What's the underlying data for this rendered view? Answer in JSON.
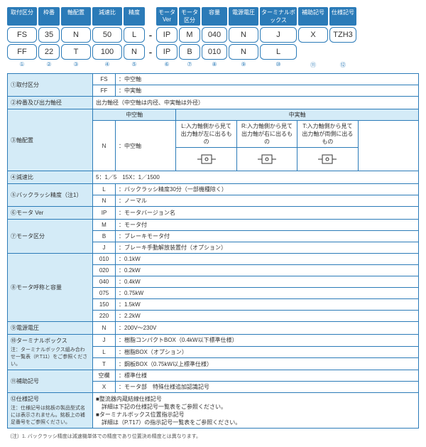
{
  "headerLabels": [
    "取付区分",
    "枠番",
    "軸配置",
    "減速比",
    "精度",
    "",
    "モータVer",
    "モータ区分",
    "容量",
    "電源電圧",
    "ターミナルボックス",
    "補助記号",
    "仕様記号"
  ],
  "codeRow1": [
    "FS",
    "35",
    "N",
    "50",
    "L",
    "-",
    "IP",
    "M",
    "040",
    "N",
    "J",
    "X",
    "TZH3"
  ],
  "codeRow2": [
    "FF",
    "22",
    "T",
    "100",
    "N",
    "-",
    "IP",
    "B",
    "010",
    "N",
    "L",
    "",
    ""
  ],
  "numRow": [
    "①",
    "②",
    "③",
    "④",
    "⑤",
    "",
    "⑥",
    "⑦",
    "⑧",
    "⑨",
    "⑩",
    "⑪",
    "⑫"
  ],
  "rows": {
    "r1": {
      "label": "①取付区分",
      "codes": [
        [
          "FS",
          "：中空軸"
        ],
        [
          "FF",
          "：中実軸"
        ]
      ]
    },
    "r2": {
      "label": "②枠番及び出力軸径",
      "text": "出力軸径（中空軸は内径、中実軸は外径）"
    },
    "r3": {
      "label": "③軸配置",
      "topHeaders": [
        "中空軸",
        "中実軸"
      ],
      "hollowCode": "N",
      "hollowLabel": "：中空軸",
      "solidCols": [
        {
          "text": "L:入力軸側から見て出力軸が左に出るもの"
        },
        {
          "text": "R:入力軸側から見て出力軸が右に出るもの"
        },
        {
          "text": "T:入力軸側から見て出力軸が両側に出るもの"
        }
      ]
    },
    "r4": {
      "label": "④減速比",
      "text": "5：1／5　15X：1／1500"
    },
    "r5": {
      "label": "⑤バックラッシ精度（注1）",
      "codes": [
        [
          "L",
          "：バックラッシ精度30分（一部機種除く）"
        ],
        [
          "N",
          "：ノーマル"
        ]
      ]
    },
    "r6": {
      "label": "⑥モータ Ver",
      "codes": [
        [
          "IP",
          "：モータバージョン名"
        ]
      ]
    },
    "r7": {
      "label": "⑦モータ区分",
      "codes": [
        [
          "M",
          "：モータ付"
        ],
        [
          "B",
          "：ブレーキモータ付"
        ],
        [
          "J",
          "：ブレーキ手動解放装置付（オプション）"
        ]
      ]
    },
    "r8": {
      "label": "⑧モータ呼称と容量",
      "codes": [
        [
          "010",
          "：0.1kW"
        ],
        [
          "020",
          "：0.2kW"
        ],
        [
          "040",
          "：0.4kW"
        ],
        [
          "075",
          "：0.75kW"
        ],
        [
          "150",
          "：1.5kW"
        ],
        [
          "220",
          "：2.2kW"
        ]
      ]
    },
    "r9": {
      "label": "⑨電源電圧",
      "codes": [
        [
          "N",
          "：200V～230V"
        ]
      ]
    },
    "r10": {
      "label": "⑩ターミナルボックス",
      "note": "注：ターミナルボックス組み合わせ一覧表（P.T11）をご参照ください。",
      "codes": [
        [
          "J",
          "：樹脂コンパクトBOX（0.4kW以下標準仕様）"
        ],
        [
          "L",
          "：樹脂BOX（オプション）"
        ],
        [
          "T",
          "：鋼板BOX（0.75kW以上標準仕様）"
        ]
      ]
    },
    "r11": {
      "label": "⑪補助記号",
      "codes": [
        [
          "空欄",
          "：標準仕様"
        ],
        [
          "X",
          "：モータ部　特殊仕様追加認識記号"
        ]
      ]
    },
    "r12": {
      "label": "⑫仕様記号",
      "note": "注：仕様記号は銘板の製品型式名には表示されません。銘板上の補足番号をご参照ください。",
      "lines": [
        "■整流器内蔵結線仕様記号",
        "　詳細は下記の仕様記号一覧表をご参照ください。",
        "■ターミナルボックス位置指示記号",
        "　詳細は（P.T17）の指示記号一覧表をご参照ください。"
      ]
    }
  },
  "footnote": "（注）1. バックラッシ精度は減速機単体での精度であり位置決め精度とは異なります。",
  "colors": {
    "blue": "#2b7bb8",
    "lightblue": "#d4ebf7"
  }
}
